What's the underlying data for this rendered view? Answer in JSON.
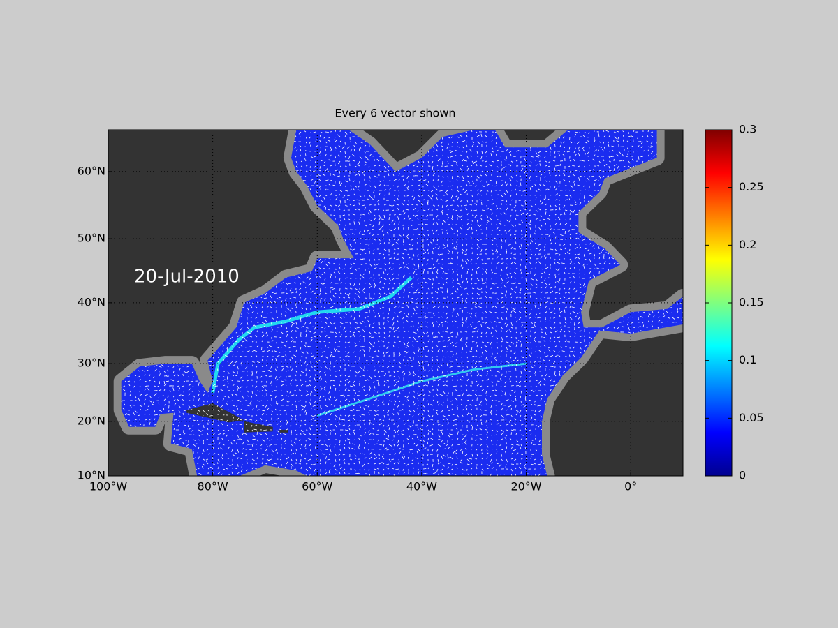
{
  "chart_data": {
    "type": "map",
    "title": "Every 6 vector shown",
    "annotation": "20-Jul-2010",
    "xlim": [
      -100,
      10
    ],
    "ylim": [
      10,
      66
    ],
    "xticks": [
      {
        "value": -100,
        "label": "100°W"
      },
      {
        "value": -80,
        "label": "80°W"
      },
      {
        "value": -60,
        "label": "60°W"
      },
      {
        "value": -40,
        "label": "40°W"
      },
      {
        "value": -20,
        "label": "20°W"
      },
      {
        "value": 0,
        "label": "0°"
      }
    ],
    "yticks": [
      {
        "value": 10,
        "label": "10°N"
      },
      {
        "value": 20,
        "label": "20°N"
      },
      {
        "value": 30,
        "label": "30°N"
      },
      {
        "value": 40,
        "label": "40°N"
      },
      {
        "value": 50,
        "label": "50°N"
      },
      {
        "value": 60,
        "label": "60°N"
      }
    ],
    "grid": true,
    "colormap": "jet",
    "clim": [
      0,
      0.3
    ],
    "cticks": [
      0,
      0.05,
      0.1,
      0.15,
      0.2,
      0.25,
      0.3
    ]
  }
}
